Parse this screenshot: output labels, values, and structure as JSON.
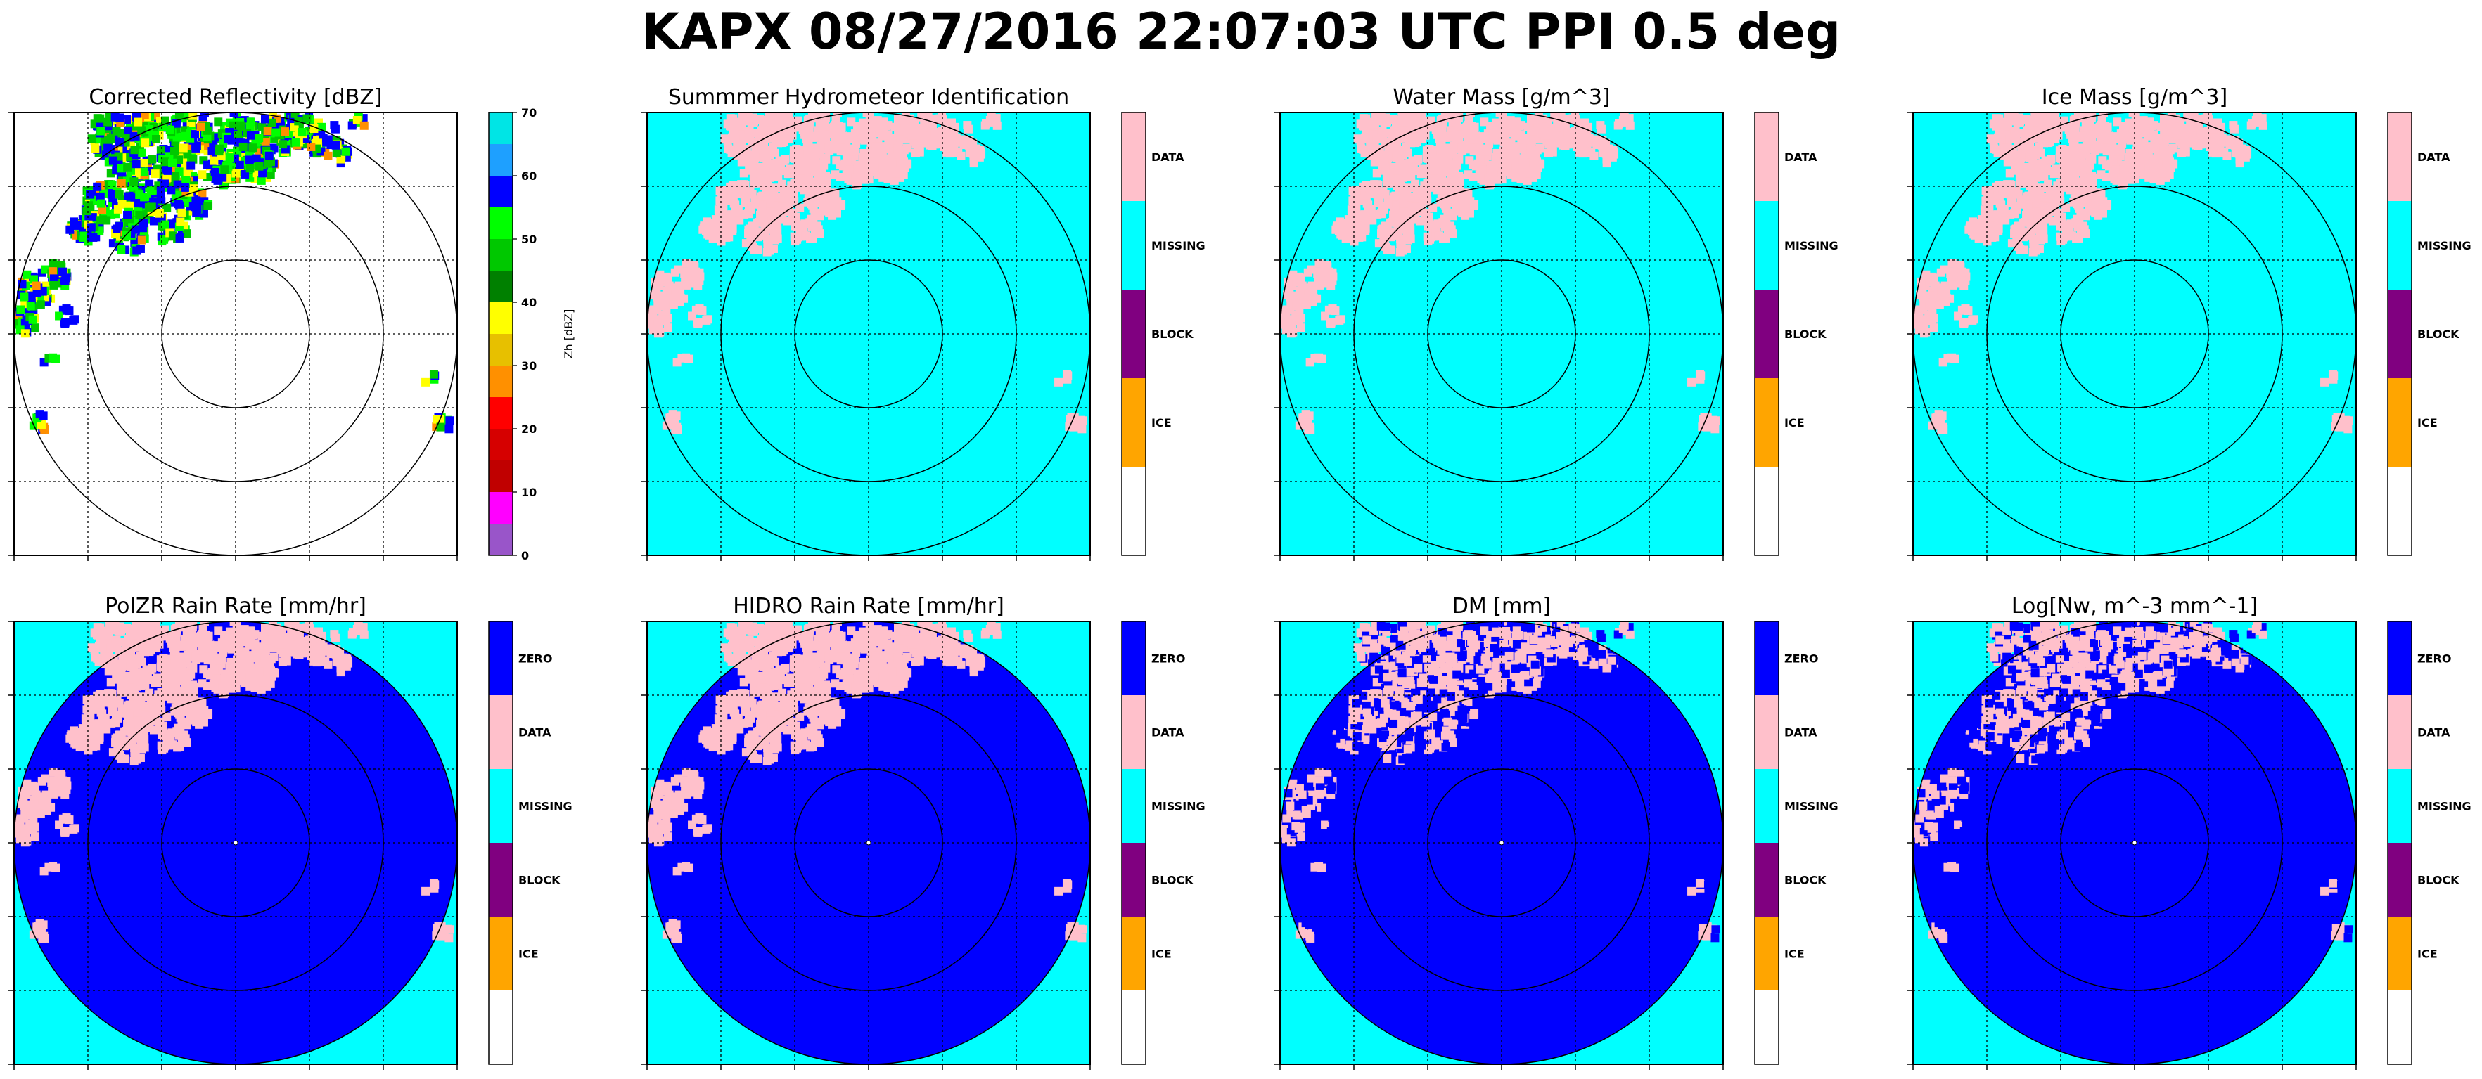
{
  "suptitle": "KAPX 08/27/2016 22:07:03 UTC PPI 0.5 deg",
  "colors": {
    "zero": "#0000ff",
    "data": "#ffc0cb",
    "missing": "#00ffff",
    "block": "#800080",
    "ice": "#ffa500",
    "empty": "#ffffff"
  },
  "chart_data": [
    {
      "type": "heatmap",
      "title": "Corrected Reflectivity [dBZ]",
      "colorbar": {
        "kind": "continuous",
        "label": "Zh [dBZ]",
        "ticks": [
          "0",
          "10",
          "20",
          "30",
          "40",
          "50",
          "60",
          "70"
        ],
        "range": [
          0,
          70
        ],
        "bands": [
          "#00e5e5",
          "#1ea0ff",
          "#0000ff",
          "#00ff00",
          "#00c800",
          "#008000",
          "#ffff00",
          "#e7c000",
          "#ff9000",
          "#ff0000",
          "#d60000",
          "#c00000",
          "#ff00ff",
          "#9955c9"
        ]
      },
      "background": "#ffffff",
      "radar_disk_color": null,
      "echo_color": "multi"
    },
    {
      "type": "heatmap",
      "title": "Summmer Hydrometeor Identification",
      "colorbar": {
        "kind": "categorical",
        "labels": [
          "DATA",
          "MISSING",
          "BLOCK",
          "ICE"
        ],
        "bands": [
          "#ffc0cb",
          "#00ffff",
          "#800080",
          "#ffa500",
          "#ffffff"
        ]
      },
      "background": "#00ffff",
      "radar_disk_color": null,
      "echo_color": "#ffc0cb"
    },
    {
      "type": "heatmap",
      "title": "Water Mass [g/m^3]",
      "colorbar": {
        "kind": "categorical",
        "labels": [
          "DATA",
          "MISSING",
          "BLOCK",
          "ICE"
        ],
        "bands": [
          "#ffc0cb",
          "#00ffff",
          "#800080",
          "#ffa500",
          "#ffffff"
        ]
      },
      "background": "#00ffff",
      "radar_disk_color": null,
      "echo_color": "#ffc0cb"
    },
    {
      "type": "heatmap",
      "title": "Ice Mass [g/m^3]",
      "colorbar": {
        "kind": "categorical",
        "labels": [
          "DATA",
          "MISSING",
          "BLOCK",
          "ICE"
        ],
        "bands": [
          "#ffc0cb",
          "#00ffff",
          "#800080",
          "#ffa500",
          "#ffffff"
        ]
      },
      "background": "#00ffff",
      "radar_disk_color": null,
      "echo_color": "#ffc0cb"
    },
    {
      "type": "heatmap",
      "title": "PolZR Rain Rate [mm/hr]",
      "colorbar": {
        "kind": "categorical",
        "labels": [
          "ZERO",
          "DATA",
          "MISSING",
          "BLOCK",
          "ICE"
        ],
        "bands": [
          "#0000ff",
          "#ffc0cb",
          "#00ffff",
          "#800080",
          "#ffa500",
          "#ffffff"
        ]
      },
      "background": "#00ffff",
      "radar_disk_color": "#0000ff",
      "echo_color": "#ffc0cb"
    },
    {
      "type": "heatmap",
      "title": "HIDRO Rain Rate [mm/hr]",
      "colorbar": {
        "kind": "categorical",
        "labels": [
          "ZERO",
          "DATA",
          "MISSING",
          "BLOCK",
          "ICE"
        ],
        "bands": [
          "#0000ff",
          "#ffc0cb",
          "#00ffff",
          "#800080",
          "#ffa500",
          "#ffffff"
        ]
      },
      "background": "#00ffff",
      "radar_disk_color": "#0000ff",
      "echo_color": "#ffc0cb"
    },
    {
      "type": "heatmap",
      "title": "DM [mm]",
      "colorbar": {
        "kind": "categorical",
        "labels": [
          "ZERO",
          "DATA",
          "MISSING",
          "BLOCK",
          "ICE"
        ],
        "bands": [
          "#0000ff",
          "#ffc0cb",
          "#00ffff",
          "#800080",
          "#ffa500",
          "#ffffff"
        ]
      },
      "background": "#00ffff",
      "radar_disk_color": "#0000ff",
      "echo_color": "#ffc0cb"
    },
    {
      "type": "heatmap",
      "title": "Log[Nw, m^-3 mm^-1]",
      "colorbar": {
        "kind": "categorical",
        "labels": [
          "ZERO",
          "DATA",
          "MISSING",
          "BLOCK",
          "ICE"
        ],
        "bands": [
          "#0000ff",
          "#ffc0cb",
          "#00ffff",
          "#800080",
          "#ffa500",
          "#ffffff"
        ]
      },
      "background": "#00ffff",
      "radar_disk_color": "#0000ff",
      "echo_color": "#ffc0cb"
    }
  ]
}
